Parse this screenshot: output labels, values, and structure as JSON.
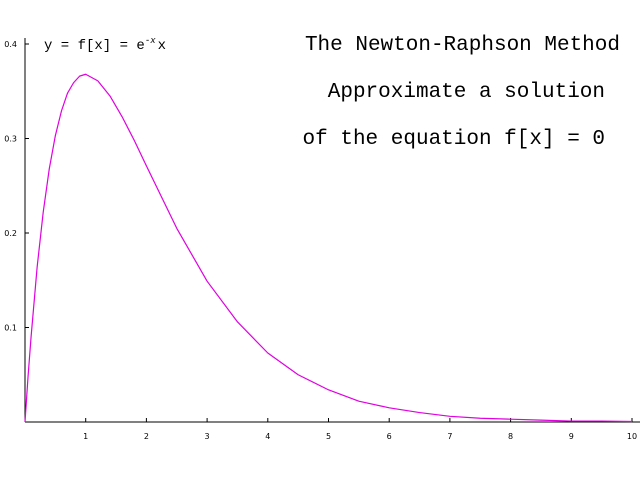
{
  "chart_data": {
    "type": "line",
    "title": "The Newton-Raphson Method",
    "subtitle_lines": [
      "Approximate a solution",
      "of the equation f[x] = 0"
    ],
    "formula": {
      "prefix": "y = f[x] = e",
      "exponent": "-x",
      "suffix": "x"
    },
    "xlabel": "",
    "ylabel": "",
    "xlim": [
      0,
      10
    ],
    "ylim": [
      0,
      0.4
    ],
    "x_ticks": [
      1,
      2,
      3,
      4,
      5,
      6,
      7,
      8,
      9,
      10
    ],
    "x_tick_labels": [
      "1",
      "2",
      "3",
      "4",
      "5",
      "6",
      7,
      "8",
      "9",
      "10"
    ],
    "y_ticks": [
      0.1,
      0.2,
      0.3,
      0.4
    ],
    "y_tick_labels": [
      "0.1",
      "0.2",
      "0.3",
      "0.4"
    ],
    "grid": false,
    "series": [
      {
        "function": "x*exp(-x)",
        "color": "#e000e0",
        "x": [
          0,
          0.05,
          0.1,
          0.2,
          0.3,
          0.4,
          0.5,
          0.6,
          0.7,
          0.8,
          0.9,
          1.0,
          1.2,
          1.4,
          1.6,
          1.8,
          2.0,
          2.5,
          3.0,
          3.5,
          4.0,
          4.5,
          5.0,
          5.5,
          6.0,
          6.5,
          7.0,
          7.5,
          8.0,
          8.5,
          9.0,
          9.5,
          10.0
        ],
        "y": [
          0,
          0.048,
          0.09,
          0.164,
          0.222,
          0.268,
          0.303,
          0.329,
          0.348,
          0.359,
          0.366,
          0.368,
          0.361,
          0.345,
          0.323,
          0.298,
          0.271,
          0.205,
          0.149,
          0.106,
          0.073,
          0.05,
          0.034,
          0.022,
          0.015,
          0.01,
          0.006,
          0.004,
          0.003,
          0.002,
          0.001,
          0.001,
          0.0005
        ]
      }
    ]
  }
}
